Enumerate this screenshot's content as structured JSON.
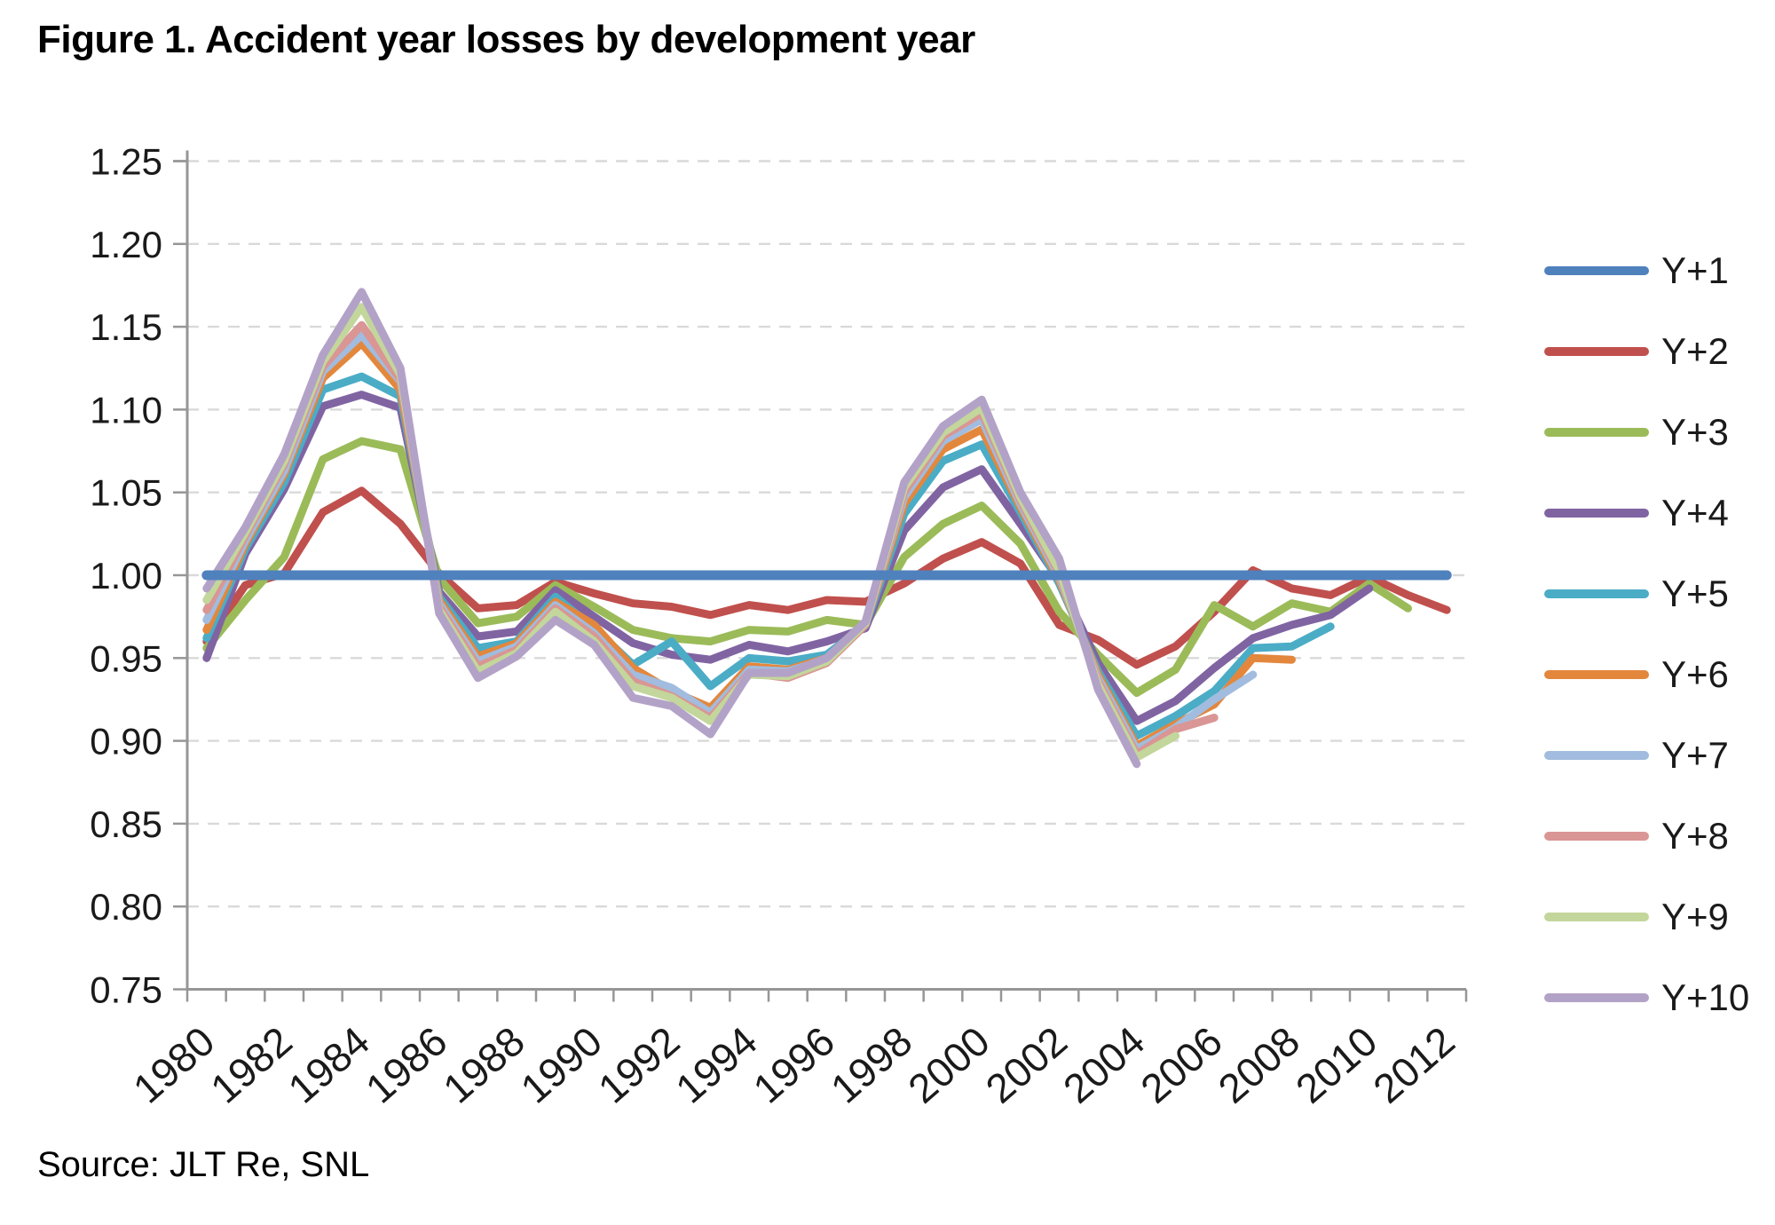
{
  "title": "Figure 1. Accident year losses by development year",
  "source": "Source: JLT Re, SNL",
  "colors": {
    "axis": "#969696",
    "grid": "#d9d9d9",
    "tick_text": "#1a1a1a",
    "background": "#ffffff"
  },
  "chart_data": {
    "type": "line",
    "title": "Figure 1. Accident year losses by development year",
    "xlabel": "",
    "ylabel": "",
    "x_start_year": 1980,
    "x_end_year": 2012,
    "x_tick_labels": [
      "1980",
      "1982",
      "1984",
      "1986",
      "1988",
      "1990",
      "1992",
      "1994",
      "1996",
      "1998",
      "2000",
      "2002",
      "2004",
      "2006",
      "2008",
      "2010",
      "2012"
    ],
    "ylim": [
      0.75,
      1.25
    ],
    "ytick_step": 0.05,
    "y_tick_labels": [
      "1.25",
      "1.20",
      "1.15",
      "1.10",
      "1.05",
      "1.00",
      "0.95",
      "0.90",
      "0.85",
      "0.80",
      "0.75"
    ],
    "grid": "horizontal-dashed",
    "legend_position": "right",
    "series": [
      {
        "name": "Y+1",
        "color": "#4f81bd",
        "z": 10,
        "width": 11,
        "start_year": 1980,
        "values": [
          1.0,
          1.0,
          1.0,
          1.0,
          1.0,
          1.0,
          1.0,
          1.0,
          1.0,
          1.0,
          1.0,
          1.0,
          1.0,
          1.0,
          1.0,
          1.0,
          1.0,
          1.0,
          1.0,
          1.0,
          1.0,
          1.0,
          1.0,
          1.0,
          1.0,
          1.0,
          1.0,
          1.0,
          1.0,
          1.0,
          1.0,
          1.0,
          1.0
        ]
      },
      {
        "name": "Y+2",
        "color": "#c0504d",
        "z": 1,
        "width": 9,
        "start_year": 1980,
        "values": [
          0.96,
          0.994,
          1.001,
          1.038,
          1.051,
          1.031,
          1.001,
          0.98,
          0.982,
          0.996,
          0.989,
          0.983,
          0.981,
          0.976,
          0.982,
          0.979,
          0.985,
          0.984,
          0.995,
          1.01,
          1.02,
          1.007,
          0.97,
          0.961,
          0.946,
          0.957,
          0.978,
          1.003,
          0.992,
          0.988,
          0.999,
          0.988,
          0.979
        ]
      },
      {
        "name": "Y+3",
        "color": "#9bbb59",
        "z": 2,
        "width": 9,
        "start_year": 1980,
        "values": [
          0.956,
          0.985,
          1.011,
          1.07,
          1.081,
          1.076,
          0.998,
          0.971,
          0.975,
          0.994,
          0.981,
          0.967,
          0.962,
          0.96,
          0.967,
          0.966,
          0.973,
          0.97,
          1.011,
          1.031,
          1.042,
          1.019,
          0.978,
          0.952,
          0.929,
          0.943,
          0.982,
          0.969,
          0.983,
          0.978,
          0.995,
          0.98
        ]
      },
      {
        "name": "Y+4",
        "color": "#8064a2",
        "z": 3,
        "width": 9,
        "start_year": 1980,
        "values": [
          0.95,
          1.013,
          1.052,
          1.102,
          1.109,
          1.101,
          0.99,
          0.963,
          0.966,
          0.991,
          0.975,
          0.959,
          0.952,
          0.949,
          0.958,
          0.954,
          0.96,
          0.968,
          1.027,
          1.053,
          1.064,
          1.031,
          0.997,
          0.947,
          0.912,
          0.924,
          0.944,
          0.962,
          0.97,
          0.976,
          0.992
        ]
      },
      {
        "name": "Y+5",
        "color": "#4bacc6",
        "z": 4,
        "width": 9,
        "start_year": 1980,
        "values": [
          0.962,
          1.016,
          1.056,
          1.112,
          1.12,
          1.108,
          0.987,
          0.956,
          0.96,
          0.987,
          0.968,
          0.946,
          0.96,
          0.933,
          0.95,
          0.948,
          0.952,
          0.97,
          1.037,
          1.069,
          1.079,
          1.038,
          0.995,
          0.942,
          0.903,
          0.915,
          0.93,
          0.956,
          0.957,
          0.969
        ]
      },
      {
        "name": "Y+6",
        "color": "#e3873d",
        "z": 5,
        "width": 9,
        "start_year": 1980,
        "values": [
          0.967,
          1.019,
          1.061,
          1.119,
          1.14,
          1.112,
          0.985,
          0.951,
          0.959,
          0.984,
          0.97,
          0.944,
          0.93,
          0.92,
          0.945,
          0.943,
          0.95,
          0.971,
          1.043,
          1.076,
          1.088,
          1.041,
          0.997,
          0.94,
          0.897,
          0.91,
          0.922,
          0.95,
          0.949
        ]
      },
      {
        "name": "Y+7",
        "color": "#a1bcde",
        "z": 6,
        "width": 9,
        "start_year": 1980,
        "values": [
          0.973,
          1.021,
          1.063,
          1.123,
          1.145,
          1.117,
          0.983,
          0.948,
          0.957,
          0.982,
          0.965,
          0.94,
          0.932,
          0.917,
          0.943,
          0.942,
          0.949,
          0.971,
          1.047,
          1.081,
          1.094,
          1.043,
          0.999,
          0.938,
          0.895,
          0.908,
          0.925,
          0.94
        ]
      },
      {
        "name": "Y+8",
        "color": "#d99694",
        "z": 7,
        "width": 9,
        "start_year": 1980,
        "values": [
          0.979,
          1.024,
          1.067,
          1.126,
          1.151,
          1.118,
          0.981,
          0.945,
          0.955,
          0.98,
          0.963,
          0.936,
          0.927,
          0.914,
          0.941,
          0.938,
          0.947,
          0.97,
          1.05,
          1.084,
          1.098,
          1.045,
          1.001,
          0.936,
          0.892,
          0.907,
          0.914
        ]
      },
      {
        "name": "Y+9",
        "color": "#c3d69b",
        "z": 8,
        "width": 9,
        "start_year": 1980,
        "values": [
          0.985,
          1.026,
          1.069,
          1.129,
          1.162,
          1.121,
          0.979,
          0.942,
          0.953,
          0.978,
          0.96,
          0.933,
          0.926,
          0.912,
          0.94,
          0.939,
          0.948,
          0.971,
          1.053,
          1.086,
          1.101,
          1.047,
          1.003,
          0.934,
          0.89,
          0.903
        ]
      },
      {
        "name": "Y+10",
        "color": "#b3a2c7",
        "z": 9,
        "width": 9,
        "start_year": 1980,
        "values": [
          0.992,
          1.029,
          1.073,
          1.133,
          1.171,
          1.125,
          0.977,
          0.938,
          0.951,
          0.973,
          0.958,
          0.926,
          0.921,
          0.904,
          0.941,
          0.941,
          0.95,
          0.972,
          1.056,
          1.09,
          1.106,
          1.05,
          1.01,
          0.931,
          0.886
        ]
      }
    ]
  }
}
